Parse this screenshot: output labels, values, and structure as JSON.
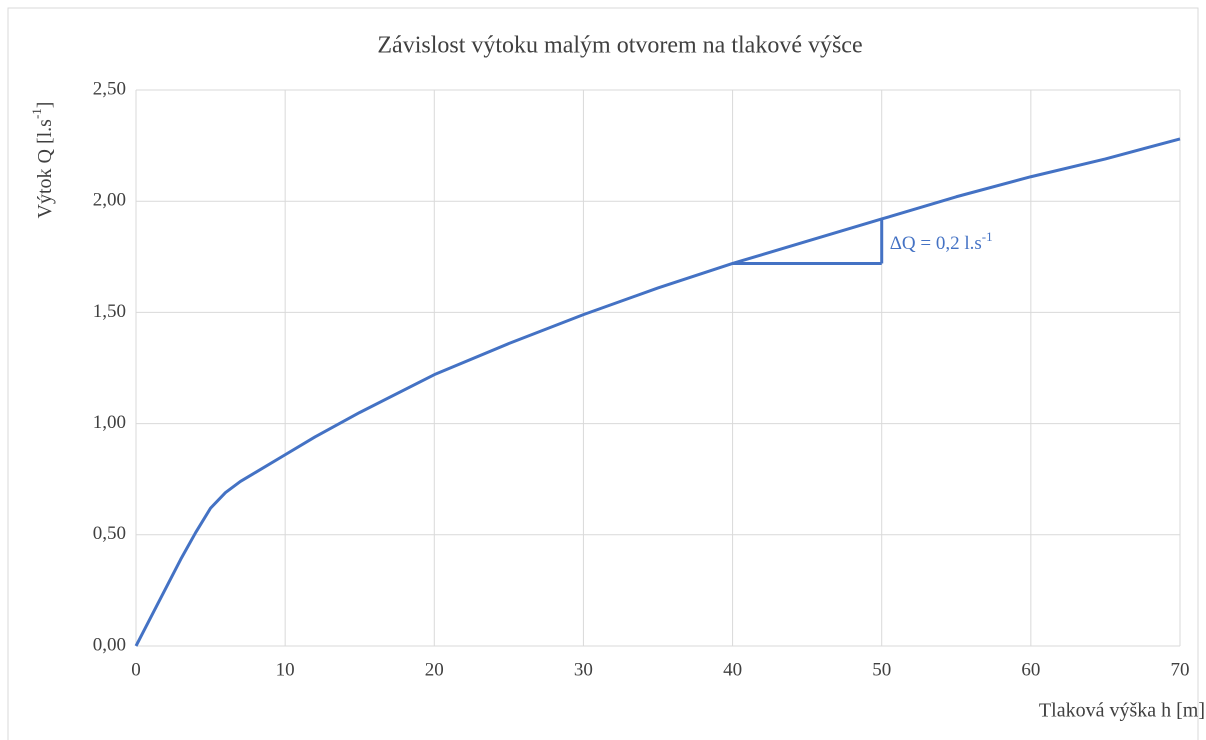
{
  "chart_data": {
    "type": "line",
    "title": "Závislost výtoku malým otvorem na tlakové výšce",
    "x_label": "Tlaková výška h [m]",
    "y_label": {
      "text": "Výtok Q [l.s",
      "sup": "-1",
      "tail": "]"
    },
    "x": [
      0,
      1,
      2,
      3,
      4,
      5,
      6,
      7,
      8,
      10,
      12,
      15,
      20,
      25,
      30,
      35,
      40,
      45,
      50,
      55,
      60,
      65,
      70
    ],
    "series": [
      {
        "name": "Výtok Q",
        "color": "#4472c4",
        "values": [
          0,
          0.13,
          0.26,
          0.39,
          0.51,
          0.62,
          0.69,
          0.74,
          0.78,
          0.86,
          0.94,
          1.05,
          1.22,
          1.36,
          1.49,
          1.61,
          1.72,
          1.82,
          1.92,
          2.02,
          2.11,
          2.19,
          2.28
        ]
      }
    ],
    "xlim": [
      0,
      70
    ],
    "ylim": [
      0,
      2.5
    ],
    "xticks": [
      0,
      10,
      20,
      30,
      40,
      50,
      60,
      70
    ],
    "yticks": [
      {
        "value": 0,
        "label": "0,00"
      },
      {
        "value": 0.5,
        "label": "0,50"
      },
      {
        "value": 1,
        "label": "1,00"
      },
      {
        "value": 1.5,
        "label": "1,50"
      },
      {
        "value": 2,
        "label": "2,00"
      },
      {
        "value": 2.5,
        "label": "2,50"
      }
    ],
    "grid": true,
    "annotation": {
      "text": "ΔQ = 0,2 l.s",
      "sup": "-1",
      "x0": 40,
      "x1": 50,
      "y0": 1.72,
      "y1": 1.92,
      "color": "#4472c4"
    }
  }
}
